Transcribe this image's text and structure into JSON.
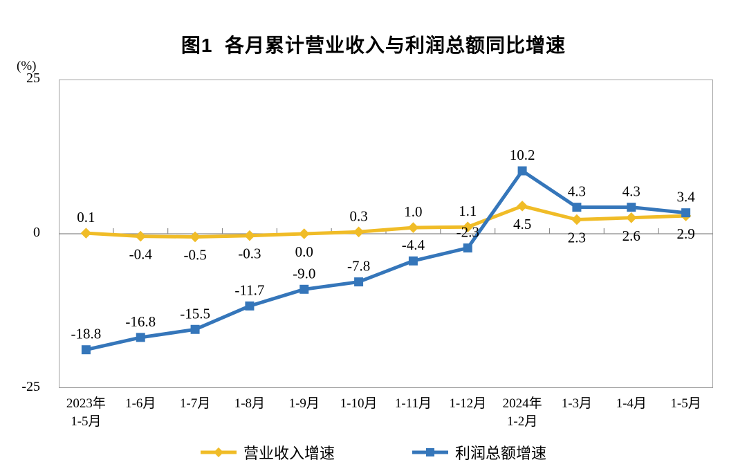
{
  "title": "图1  各月累计营业收入与利润总额同比增速",
  "chart_data": {
    "type": "line",
    "title": "图1  各月累计营业收入与利润总额同比增速",
    "unit_label": "(%)",
    "categories": [
      "2023年\n1-5月",
      "1-6月",
      "1-7月",
      "1-8月",
      "1-9月",
      "1-10月",
      "1-11月",
      "1-12月",
      "2024年\n1-2月",
      "1-3月",
      "1-4月",
      "1-5月"
    ],
    "ylim": [
      -25,
      25
    ],
    "yticks": [
      {
        "label": "25",
        "value": 25
      },
      {
        "label": "0",
        "value": 0
      },
      {
        "label": "-25",
        "value": -25
      }
    ],
    "grid": "off",
    "legend_position": "bottom",
    "series": [
      {
        "name": "营业收入增速",
        "color": "#F0BC27",
        "marker": "diamond",
        "values": [
          0.1,
          -0.4,
          -0.5,
          -0.3,
          0.0,
          0.3,
          1.0,
          1.1,
          4.5,
          2.3,
          2.6,
          2.9
        ],
        "label_positions": [
          "above",
          "below",
          "below",
          "below",
          "below",
          "above",
          "above",
          "above",
          "below",
          "below",
          "below",
          "below"
        ]
      },
      {
        "name": "利润总额增速",
        "color": "#3576BA",
        "marker": "square",
        "values": [
          -18.8,
          -16.8,
          -15.5,
          -11.7,
          -9.0,
          -7.8,
          -4.4,
          -2.3,
          10.2,
          4.3,
          4.3,
          3.4
        ],
        "label_positions": [
          "above",
          "above",
          "above",
          "above",
          "above",
          "above",
          "above",
          "above",
          "above",
          "above",
          "above",
          "above"
        ]
      }
    ]
  }
}
